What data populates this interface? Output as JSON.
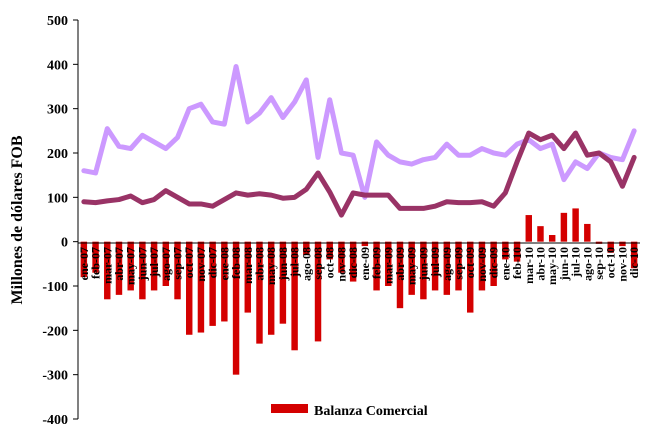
{
  "chart_data": {
    "type": "bar",
    "ylabel": "Millones de dólares FOB",
    "ylim": [
      -400,
      500
    ],
    "yticks": [
      500,
      400,
      300,
      200,
      100,
      0,
      -100,
      -200,
      -300,
      -400
    ],
    "grid": false,
    "legend": {
      "position": "bottom",
      "entries": [
        "Balanza Comercial"
      ]
    },
    "x": [
      "ene-07",
      "feb-07",
      "mar-07",
      "abr-07",
      "may-07",
      "jun-07",
      "jul-07",
      "ago-07",
      "sep-07",
      "oct-07",
      "nov-07",
      "dic-07",
      "ene-08",
      "feb-08",
      "mar-08",
      "abr-08",
      "may-08",
      "jun-08",
      "jul-08",
      "ago-08",
      "sep-08",
      "oct-08",
      "nov-08",
      "dic-08",
      "ene-09",
      "feb-09",
      "mar-09",
      "abr-09",
      "may-09",
      "jun-09",
      "jul-09",
      "ago-09",
      "sep-09",
      "oct-09",
      "nov-09",
      "dic-09",
      "ene-10",
      "feb-10",
      "mar-10",
      "abr-10",
      "may-10",
      "jun-10",
      "jul-10",
      "ago-10",
      "sep-10",
      "oct-10",
      "nov-10",
      "dic-10"
    ],
    "xtick_labels": [
      "ene-07",
      "feb-07",
      "mar-07",
      "abr-07",
      "may-07",
      "jun-07",
      "jul-07",
      "ago-07",
      "sep-07",
      "oct-07",
      "nov-07",
      "dic-07",
      "ene-08",
      "feb-08",
      "mar-08",
      "abr-08",
      "may-08",
      "jun-08",
      "jul-08",
      "ago-08",
      "sep-08",
      "oct-08",
      "nov-08",
      "dic-08",
      "ene-09",
      "feb-09",
      "mar-09",
      "abr-09",
      "may-09",
      "jun-09",
      "jul-09",
      "ago-09",
      "sep-09",
      "oct-09",
      "nov-09",
      "dic-09",
      "ene-10",
      "feb-10",
      "mar-10",
      "abr-10",
      "may-10",
      "jun-10",
      "jul-10",
      "ago-10",
      "sep-10",
      "oct-10",
      "nov-10",
      "dic-10"
    ],
    "series": [
      {
        "name": "Balanza Comercial",
        "kind": "bar",
        "color": "#d40000",
        "values": [
          -80,
          -70,
          -130,
          -120,
          -110,
          -130,
          -110,
          -100,
          -130,
          -210,
          -205,
          -190,
          -180,
          -300,
          -160,
          -230,
          -210,
          -185,
          -245,
          -30,
          -225,
          -40,
          -70,
          -90,
          -10,
          -110,
          -100,
          -150,
          -120,
          -130,
          -110,
          -120,
          -110,
          -160,
          -110,
          -100,
          -40,
          -45,
          60,
          35,
          15,
          65,
          75,
          40,
          -5,
          -25,
          -10,
          -60
        ]
      },
      {
        "kind": "line",
        "color": "#cc99ff",
        "values": [
          160,
          155,
          255,
          215,
          210,
          240,
          225,
          210,
          235,
          300,
          310,
          270,
          265,
          395,
          270,
          290,
          325,
          280,
          315,
          365,
          190,
          320,
          200,
          195,
          100,
          225,
          195,
          180,
          175,
          185,
          190,
          220,
          195,
          195,
          210,
          200,
          195,
          220,
          230,
          210,
          220,
          140,
          180,
          165,
          200,
          190,
          185,
          250
        ]
      },
      {
        "kind": "line",
        "color": "#993366",
        "values": [
          90,
          88,
          92,
          95,
          103,
          88,
          95,
          115,
          100,
          85,
          85,
          80,
          95,
          110,
          105,
          108,
          105,
          98,
          100,
          118,
          155,
          112,
          60,
          110,
          105,
          105,
          105,
          75,
          75,
          75,
          80,
          90,
          88,
          88,
          90,
          80,
          110,
          180,
          245,
          230,
          240,
          210,
          245,
          195,
          200,
          180,
          125,
          190
        ]
      }
    ]
  }
}
